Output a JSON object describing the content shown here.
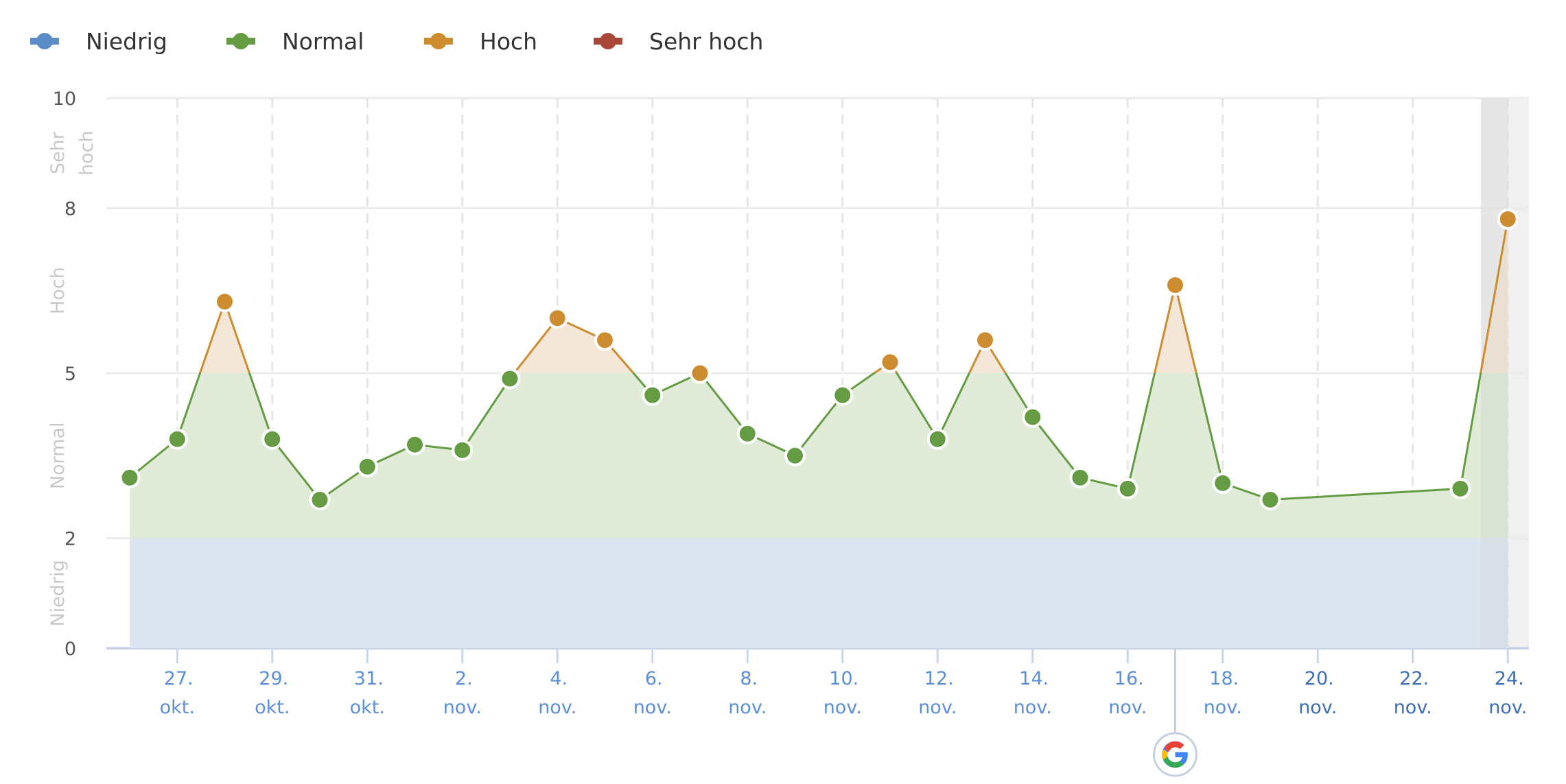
{
  "legend": {
    "items": [
      {
        "label": "Niedrig",
        "color": "#5b8cc8",
        "x": 44
      },
      {
        "label": "Normal",
        "color": "#649b43",
        "x": 330
      },
      {
        "label": "Hoch",
        "color": "#cd8c30",
        "x": 618
      },
      {
        "label": "Sehr hoch",
        "color": "#a8473a",
        "x": 865
      }
    ]
  },
  "colors": {
    "niedrig_band": "#dce6f1",
    "normal_fill": "#e0ebd8",
    "hoch_fill": "#f5e7d7",
    "normal_line": "#649b43",
    "hoch_line": "#cd8c30",
    "gridline": "#ebebeb",
    "axis_line": "#ccd6eb",
    "xlabel_light": "#5b8fd9",
    "xlabel_dark": "#3d6fb8",
    "highlight_band": "#f0f0f0"
  },
  "chart_data": {
    "type": "area",
    "title": "",
    "xlabel": "",
    "ylabel": "",
    "ylim": [
      0,
      10
    ],
    "grid": true,
    "legend_position": "top-left",
    "y_ticks": [
      "0",
      "2",
      "5",
      "8",
      "10"
    ],
    "y_tick_values": [
      0,
      2,
      5,
      8,
      10
    ],
    "y_bands": [
      {
        "label": "Niedrig",
        "from": 0,
        "to": 2
      },
      {
        "label": "Normal",
        "from": 2,
        "to": 5
      },
      {
        "label": "Hoch",
        "from": 5,
        "to": 8
      },
      {
        "label": "Sehr hoch",
        "from": 8,
        "to": 10
      }
    ],
    "x_ticks": [
      {
        "day": 1,
        "line1": "27.",
        "line2": "okt.",
        "dark": false
      },
      {
        "day": 3,
        "line1": "29.",
        "line2": "okt.",
        "dark": false
      },
      {
        "day": 5,
        "line1": "31.",
        "line2": "okt.",
        "dark": false
      },
      {
        "day": 7,
        "line1": "2.",
        "line2": "nov.",
        "dark": false
      },
      {
        "day": 9,
        "line1": "4.",
        "line2": "nov.",
        "dark": false
      },
      {
        "day": 11,
        "line1": "6.",
        "line2": "nov.",
        "dark": false
      },
      {
        "day": 13,
        "line1": "8.",
        "line2": "nov.",
        "dark": false
      },
      {
        "day": 15,
        "line1": "10.",
        "line2": "nov.",
        "dark": false
      },
      {
        "day": 17,
        "line1": "12.",
        "line2": "nov.",
        "dark": false
      },
      {
        "day": 19,
        "line1": "14.",
        "line2": "nov.",
        "dark": false
      },
      {
        "day": 21,
        "line1": "16.",
        "line2": "nov.",
        "dark": false
      },
      {
        "day": 23,
        "line1": "18.",
        "line2": "nov.",
        "dark": false
      },
      {
        "day": 25,
        "line1": "20.",
        "line2": "nov.",
        "dark": true
      },
      {
        "day": 27,
        "line1": "22.",
        "line2": "nov.",
        "dark": true
      },
      {
        "day": 29,
        "line1": "24.",
        "line2": "nov.",
        "dark": true
      }
    ],
    "x": [
      "26. okt.",
      "27. okt.",
      "28. okt.",
      "29. okt.",
      "30. okt.",
      "31. okt.",
      "1. nov.",
      "2. nov.",
      "3. nov.",
      "4. nov.",
      "5. nov.",
      "6. nov.",
      "7. nov.",
      "8. nov.",
      "9. nov.",
      "10. nov.",
      "11. nov.",
      "12. nov.",
      "13. nov.",
      "14. nov.",
      "15. nov.",
      "16. nov.",
      "17. nov.",
      "18. nov.",
      "19. nov.",
      "23. nov.",
      "24. nov."
    ],
    "days": [
      0,
      1,
      2,
      3,
      4,
      5,
      6,
      7,
      8,
      9,
      10,
      11,
      12,
      13,
      14,
      15,
      16,
      17,
      18,
      19,
      20,
      21,
      22,
      23,
      24,
      28,
      29
    ],
    "values": [
      3.1,
      3.8,
      6.3,
      3.8,
      2.7,
      3.3,
      3.7,
      3.6,
      4.9,
      6.0,
      5.6,
      4.6,
      5.0,
      3.9,
      3.5,
      4.6,
      5.2,
      3.8,
      5.6,
      4.2,
      3.1,
      2.9,
      6.6,
      3.0,
      2.7,
      2.9,
      7.8
    ],
    "annotations": [
      {
        "type": "google-update-marker",
        "day": 22,
        "label": "G"
      },
      {
        "type": "highlight-band",
        "day": 29
      }
    ]
  }
}
